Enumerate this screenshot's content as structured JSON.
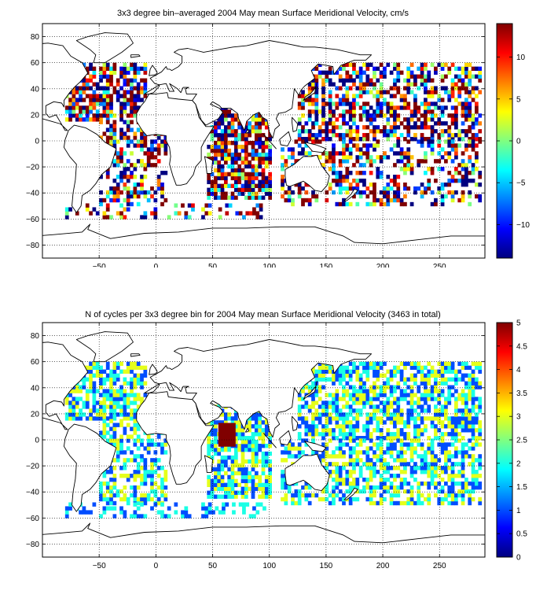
{
  "chart_data": [
    {
      "type": "heatmap",
      "title": "3x3 degree bin–averaged 2004 May mean Surface Meridional Velocity, cm/s",
      "xlabel": "",
      "ylabel": "",
      "xlim": [
        -100,
        290
      ],
      "ylim": [
        -90,
        90
      ],
      "xticks": [
        -50,
        0,
        50,
        100,
        150,
        200,
        250
      ],
      "yticks": [
        -80,
        -60,
        -40,
        -20,
        0,
        20,
        40,
        60,
        80
      ],
      "bin_size_deg": 3,
      "grid": true,
      "colormap": "jet",
      "colorbar": {
        "range": [
          -14,
          14
        ],
        "ticks": [
          -10,
          -5,
          0,
          5,
          10
        ]
      },
      "regions": [
        {
          "x": [
            -80,
            -10
          ],
          "y": [
            15,
            60
          ],
          "density": 0.65,
          "values": [
            -14,
            14
          ]
        },
        {
          "x": [
            -50,
            10
          ],
          "y": [
            -50,
            15
          ],
          "density": 0.45,
          "values": [
            -14,
            14
          ]
        },
        {
          "x": [
            45,
            100
          ],
          "y": [
            -45,
            25
          ],
          "density": 0.75,
          "values": [
            -14,
            14
          ]
        },
        {
          "x": [
            125,
            285
          ],
          "y": [
            0,
            60
          ],
          "density": 0.6,
          "values": [
            -14,
            14
          ]
        },
        {
          "x": [
            110,
            285
          ],
          "y": [
            -50,
            0
          ],
          "density": 0.45,
          "values": [
            -14,
            14
          ]
        },
        {
          "x": [
            -80,
            100
          ],
          "y": [
            -60,
            -50
          ],
          "density": 0.3,
          "values": [
            -14,
            14
          ]
        }
      ]
    },
    {
      "type": "heatmap",
      "title": "N of cycles per 3x3 degree bin for 2004 May mean Surface Meridional Velocity (3463 in total)",
      "xlabel": "",
      "ylabel": "",
      "xlim": [
        -100,
        290
      ],
      "ylim": [
        -90,
        90
      ],
      "xticks": [
        -50,
        0,
        50,
        100,
        150,
        200,
        250
      ],
      "yticks": [
        -80,
        -60,
        -40,
        -20,
        0,
        20,
        40,
        60,
        80
      ],
      "bin_size_deg": 3,
      "grid": true,
      "colormap": "jet",
      "total_cycles": 3463,
      "colorbar": {
        "range": [
          0,
          5
        ],
        "ticks": [
          0,
          0.5,
          1,
          1.5,
          2,
          2.5,
          3,
          3.5,
          4,
          4.5,
          5
        ]
      },
      "regions": [
        {
          "x": [
            -80,
            -10
          ],
          "y": [
            15,
            60
          ],
          "density": 0.7,
          "values": [
            1,
            3
          ]
        },
        {
          "x": [
            -50,
            10
          ],
          "y": [
            -50,
            15
          ],
          "density": 0.55,
          "values": [
            1,
            3
          ]
        },
        {
          "x": [
            45,
            100
          ],
          "y": [
            -45,
            25
          ],
          "density": 0.75,
          "values": [
            1,
            3
          ]
        },
        {
          "x": [
            55,
            70
          ],
          "y": [
            -5,
            12
          ],
          "density": 1.0,
          "values": [
            5,
            5
          ]
        },
        {
          "x": [
            125,
            285
          ],
          "y": [
            0,
            60
          ],
          "density": 0.65,
          "values": [
            1,
            3
          ]
        },
        {
          "x": [
            110,
            285
          ],
          "y": [
            -50,
            0
          ],
          "density": 0.55,
          "values": [
            1,
            3
          ]
        },
        {
          "x": [
            -80,
            100
          ],
          "y": [
            -60,
            -50
          ],
          "density": 0.35,
          "values": [
            1,
            2
          ]
        }
      ]
    }
  ]
}
